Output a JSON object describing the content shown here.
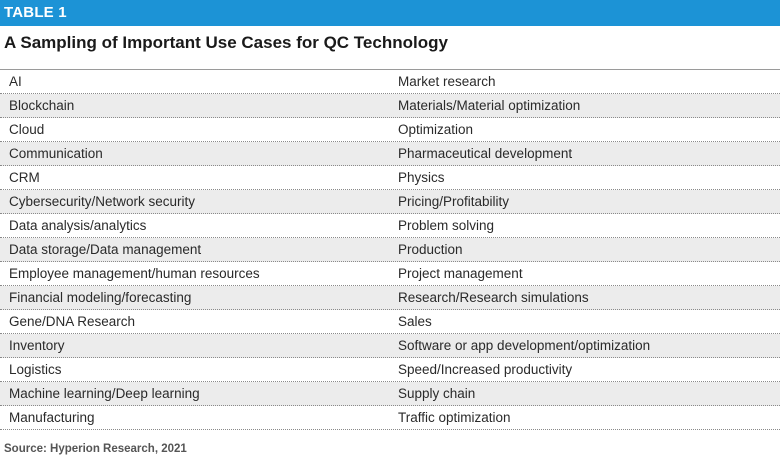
{
  "banner": {
    "label": "TABLE 1"
  },
  "title": "A Sampling of Important Use Cases for QC Technology",
  "table": {
    "rows": [
      {
        "left": "AI",
        "right": "Market research"
      },
      {
        "left": "Blockchain",
        "right": "Materials/Material optimization"
      },
      {
        "left": "Cloud",
        "right": "Optimization"
      },
      {
        "left": "Communication",
        "right": "Pharmaceutical development"
      },
      {
        "left": "CRM",
        "right": "Physics"
      },
      {
        "left": "Cybersecurity/Network security",
        "right": "Pricing/Profitability"
      },
      {
        "left": "Data analysis/analytics",
        "right": "Problem solving"
      },
      {
        "left": "Data storage/Data management",
        "right": "Production"
      },
      {
        "left": "Employee management/human resources",
        "right": "Project management"
      },
      {
        "left": "Financial modeling/forecasting",
        "right": "Research/Research simulations"
      },
      {
        "left": "Gene/DNA Research",
        "right": "Sales"
      },
      {
        "left": "Inventory",
        "right": "Software or app development/optimization"
      },
      {
        "left": "Logistics",
        "right": "Speed/Increased productivity"
      },
      {
        "left": "Machine learning/Deep learning",
        "right": "Supply chain"
      },
      {
        "left": "Manufacturing",
        "right": "Traffic optimization"
      }
    ]
  },
  "source": "Source: Hyperion Research, 2021",
  "colors": {
    "banner_bg": "#1c93d6",
    "alt_row_bg": "#ececec"
  }
}
